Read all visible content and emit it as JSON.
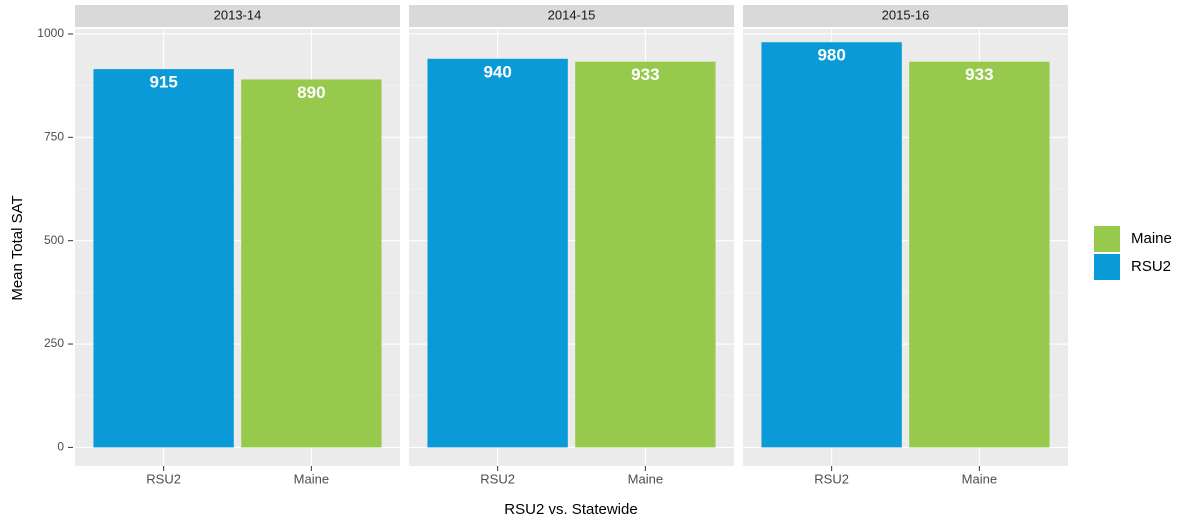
{
  "chart_data": {
    "type": "bar",
    "y_label": "Mean Total SAT",
    "x_label": "RSU2 vs. Statewide",
    "categories": [
      "RSU2",
      "Maine"
    ],
    "facets": [
      {
        "title": "2013-14",
        "values": [
          915,
          890
        ]
      },
      {
        "title": "2014-15",
        "values": [
          940,
          933
        ]
      },
      {
        "title": "2015-16",
        "values": [
          980,
          933
        ]
      }
    ],
    "legend": [
      {
        "name": "Maine",
        "color": "#97c94d"
      },
      {
        "name": "RSU2",
        "color": "#0a9ad7"
      }
    ],
    "ylim": [
      -45,
      1012
    ],
    "yticks": [
      0,
      250,
      500,
      750,
      1000
    ],
    "grid": true
  }
}
